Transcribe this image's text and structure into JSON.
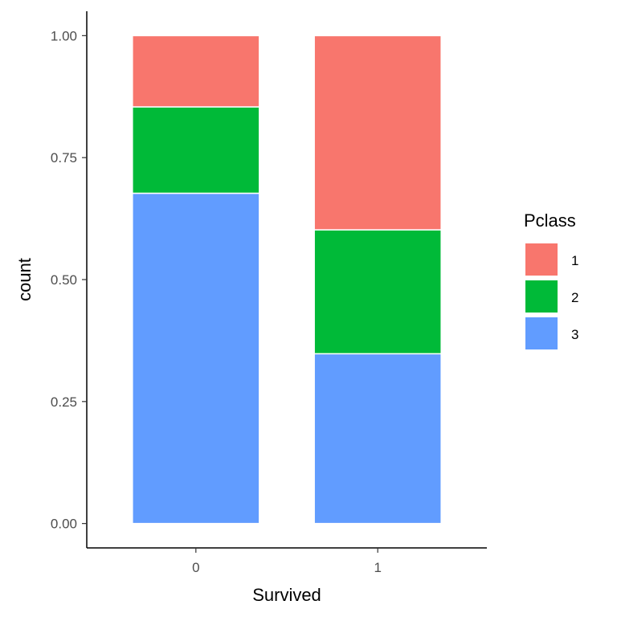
{
  "chart_data": {
    "type": "bar",
    "stacked": true,
    "categories": [
      "0",
      "1"
    ],
    "series": [
      {
        "name": "1",
        "color": "#F8766D",
        "values": [
          0.146,
          0.398
        ]
      },
      {
        "name": "2",
        "color": "#00BA38",
        "values": [
          0.177,
          0.254
        ]
      },
      {
        "name": "3",
        "color": "#619CFF",
        "values": [
          0.677,
          0.348
        ]
      }
    ],
    "stack_order_bottom_to_top": [
      "3",
      "2",
      "1"
    ],
    "xlabel": "Survived",
    "ylabel": "count",
    "ylim": [
      -0.05,
      1.05
    ],
    "yticks": [
      0,
      0.25,
      0.5,
      0.75,
      1.0
    ],
    "ytick_labels": [
      "0.00",
      "0.25",
      "0.50",
      "0.75",
      "1.00"
    ],
    "legend": {
      "title": "Pclass",
      "position": "right"
    },
    "grid": false
  }
}
